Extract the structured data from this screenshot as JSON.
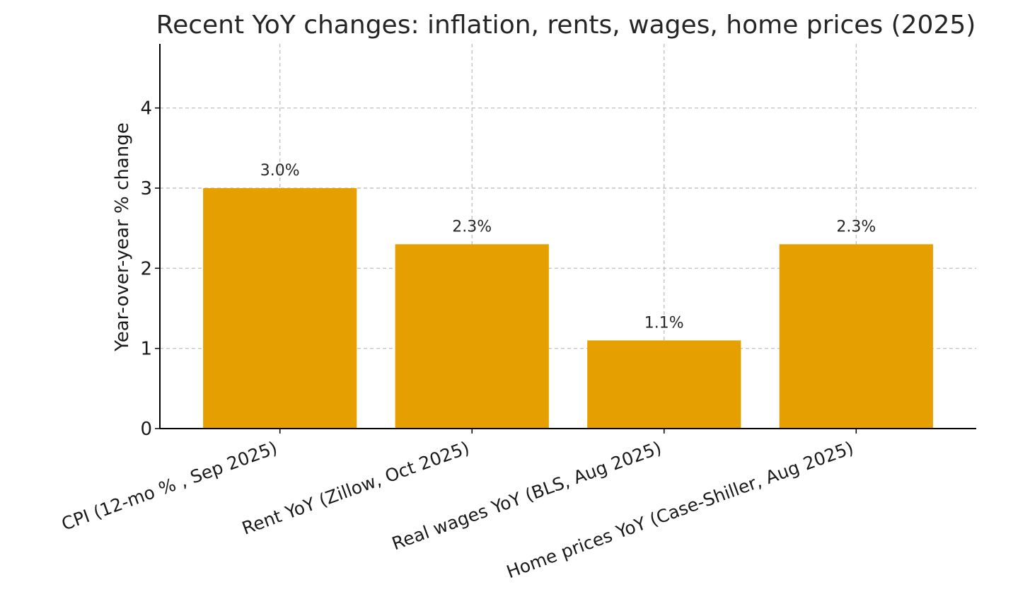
{
  "chart_data": {
    "type": "bar",
    "title": "Recent YoY changes: inflation, rents, wages, home prices (2025)",
    "ylabel": "Year-over-year % change",
    "xlabel": "",
    "categories": [
      "CPI (12-mo % , Sep 2025)",
      "Rent YoY (Zillow, Oct 2025)",
      "Real wages YoY (BLS, Aug 2025)",
      "Home prices YoY (Case-Shiller, Aug 2025)"
    ],
    "values": [
      3.0,
      2.3,
      1.1,
      2.3
    ],
    "data_labels": [
      "3.0%",
      "2.3%",
      "1.1%",
      "2.3%"
    ],
    "ylim": [
      0,
      4.8
    ],
    "yticks": [
      0,
      1,
      2,
      3,
      4
    ],
    "grid": true,
    "bar_color": "#e5a000"
  }
}
